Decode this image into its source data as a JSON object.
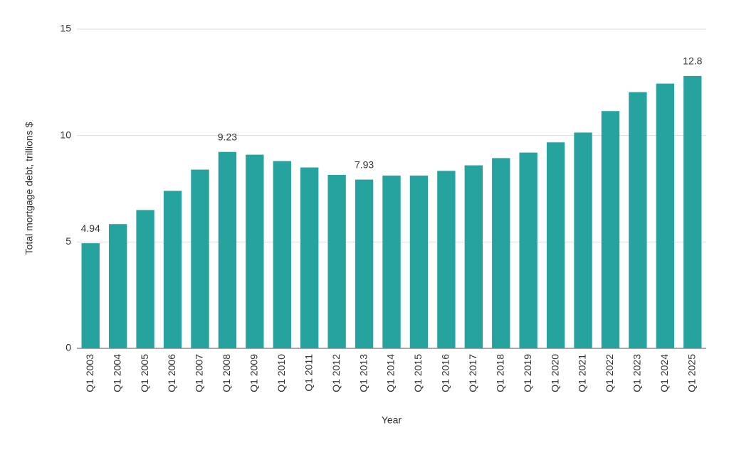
{
  "chart_data": {
    "type": "bar",
    "x_label": "Year",
    "y_label": "Total mortgage debt, trillions $",
    "categories": [
      "Q1 2003",
      "Q1 2004",
      "Q1 2005",
      "Q1 2006",
      "Q1 2007",
      "Q1 2008",
      "Q1 2009",
      "Q1 2010",
      "Q1 2011",
      "Q1 2012",
      "Q1 2013",
      "Q1 2014",
      "Q1 2015",
      "Q1 2016",
      "Q1 2017",
      "Q1 2018",
      "Q1 2019",
      "Q1 2020",
      "Q1 2021",
      "Q1 2022",
      "Q1 2023",
      "Q1 2024",
      "Q1 2025"
    ],
    "values": [
      4.94,
      5.84,
      6.5,
      7.4,
      8.4,
      9.23,
      9.1,
      8.8,
      8.5,
      8.15,
      7.93,
      8.12,
      8.12,
      8.34,
      8.6,
      8.94,
      9.2,
      9.68,
      10.14,
      11.15,
      12.04,
      12.44,
      12.8
    ],
    "value_labels": [
      "4.94",
      null,
      null,
      null,
      null,
      "9.23",
      null,
      null,
      null,
      null,
      "7.93",
      null,
      null,
      null,
      null,
      null,
      null,
      null,
      null,
      null,
      null,
      null,
      "12.8"
    ],
    "color": "#26a29f",
    "ylim": [
      0,
      15
    ],
    "yticks": [
      0,
      5,
      10,
      15
    ],
    "grid": true
  }
}
